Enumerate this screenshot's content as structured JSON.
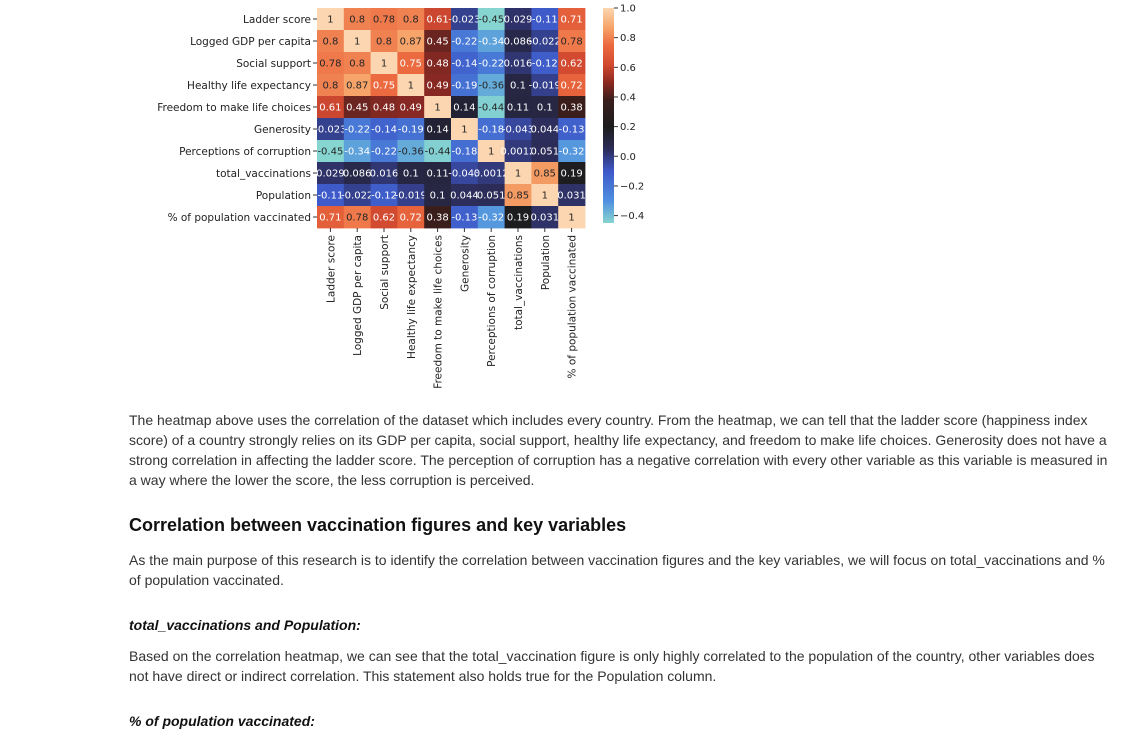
{
  "chart_data": {
    "type": "heatmap",
    "labels": [
      "Ladder score",
      "Logged GDP per capita",
      "Social support",
      "Healthy life expectancy",
      "Freedom to make life choices",
      "Generosity",
      "Perceptions of corruption",
      "total_vaccinations",
      "Population",
      "% of population vaccinated"
    ],
    "values": [
      [
        1,
        0.8,
        0.78,
        0.8,
        0.61,
        -0.023,
        -0.45,
        0.029,
        -0.11,
        0.71
      ],
      [
        0.8,
        1,
        0.8,
        0.87,
        0.45,
        -0.22,
        -0.34,
        0.086,
        -0.022,
        0.78
      ],
      [
        0.78,
        0.8,
        1,
        0.75,
        0.48,
        -0.14,
        -0.22,
        0.016,
        -0.12,
        0.62
      ],
      [
        0.8,
        0.87,
        0.75,
        1,
        0.49,
        -0.19,
        -0.36,
        0.1,
        -0.019,
        0.72
      ],
      [
        0.61,
        0.45,
        0.48,
        0.49,
        1,
        0.14,
        -0.44,
        0.11,
        0.1,
        0.38
      ],
      [
        -0.023,
        -0.22,
        -0.14,
        -0.19,
        0.14,
        1,
        -0.18,
        -0.043,
        0.044,
        -0.13
      ],
      [
        -0.45,
        -0.34,
        -0.22,
        -0.36,
        -0.44,
        -0.18,
        1,
        0.0012,
        0.051,
        -0.32
      ],
      [
        0.029,
        0.086,
        0.016,
        0.1,
        0.11,
        -0.043,
        0.0012,
        1,
        0.85,
        0.19
      ],
      [
        -0.11,
        -0.022,
        -0.12,
        -0.019,
        0.1,
        0.044,
        0.051,
        0.85,
        1,
        0.031
      ],
      [
        0.71,
        0.78,
        0.62,
        0.72,
        0.38,
        -0.13,
        -0.32,
        0.19,
        0.031,
        1
      ]
    ],
    "cell_text": [
      [
        "1",
        "0.8",
        "0.78",
        "0.8",
        "0.61",
        "-0.023",
        "-0.45",
        "0.029",
        "-0.11",
        "0.71"
      ],
      [
        "0.8",
        "1",
        "0.8",
        "0.87",
        "0.45",
        "-0.22",
        "-0.34",
        "0.086",
        "-0.022",
        "0.78"
      ],
      [
        "0.78",
        "0.8",
        "1",
        "0.75",
        "0.48",
        "-0.14",
        "-0.22",
        "0.016",
        "-0.12",
        "0.62"
      ],
      [
        "0.8",
        "0.87",
        "0.75",
        "1",
        "0.49",
        "-0.19",
        "-0.36",
        "0.1",
        "-0.019",
        "0.72"
      ],
      [
        "0.61",
        "0.45",
        "0.48",
        "0.49",
        "1",
        "0.14",
        "-0.44",
        "0.11",
        "0.1",
        "0.38"
      ],
      [
        "-0.023",
        "-0.22",
        "-0.14",
        "-0.19",
        "0.14",
        "1",
        "-0.18",
        "-0.043",
        "0.044",
        "-0.13"
      ],
      [
        "-0.45",
        "-0.34",
        "-0.22",
        "-0.36",
        "-0.44",
        "-0.18",
        "1",
        "0.0012",
        "0.051",
        "-0.32"
      ],
      [
        "0.029",
        "0.086",
        "0.016",
        "0.1",
        "0.11",
        "-0.043",
        "0.0012",
        "1",
        "0.85",
        "0.19"
      ],
      [
        "-0.11",
        "-0.022",
        "-0.12",
        "-0.019",
        "0.1",
        "0.044",
        "0.051",
        "0.85",
        "1",
        "0.031"
      ],
      [
        "0.71",
        "0.78",
        "0.62",
        "0.72",
        "0.38",
        "-0.13",
        "-0.32",
        "0.19",
        "0.031",
        "1"
      ]
    ],
    "colorbar": {
      "range": [
        -0.45,
        1.0
      ],
      "ticks": [
        1.0,
        0.8,
        0.6,
        0.4,
        0.2,
        0.0,
        -0.2,
        -0.4
      ],
      "tick_labels": [
        "1.0",
        "0.8",
        "0.6",
        "0.4",
        "0.2",
        "0.0",
        "−0.2",
        "−0.4"
      ],
      "colormap_stops": [
        {
          "v": -0.45,
          "c": "#86d5d0"
        },
        {
          "v": -0.3,
          "c": "#4f8fe0"
        },
        {
          "v": -0.1,
          "c": "#3d58c8"
        },
        {
          "v": 0.05,
          "c": "#2c2c58"
        },
        {
          "v": 0.2,
          "c": "#1c1c1c"
        },
        {
          "v": 0.38,
          "c": "#3a1e1c"
        },
        {
          "v": 0.5,
          "c": "#8e2a22"
        },
        {
          "v": 0.62,
          "c": "#d24a30"
        },
        {
          "v": 0.75,
          "c": "#ec6a40"
        },
        {
          "v": 0.87,
          "c": "#f6a46a"
        },
        {
          "v": 1.0,
          "c": "#fcd6b0"
        }
      ]
    },
    "grid": false
  },
  "article": {
    "intro_paragraph": "The heatmap above uses the correlation of the dataset which includes every country. From the heatmap, we can tell that the ladder score (happiness index score) of a country strongly relies on its GDP per capita, social support, healthy life expectancy, and freedom to make life choices. Generosity does not have a strong correlation in affecting the ladder score. The perception of corruption has a negative correlation with every other variable as this variable is measured in a way where the lower the score, the less corruption is perceived.",
    "section_heading": "Correlation between vaccination figures and key variables",
    "section_paragraph": "As the main purpose of this research is to identify the correlation between vaccination figures and the key variables, we will focus on total_vaccinations and % of population vaccinated.",
    "sub1_heading": "total_vaccinations and Population:",
    "sub1_paragraph": "Based on the correlation heatmap, we can see that the total_vaccination figure is only highly correlated to the population of the country, other variables does not have direct or indirect correlation. This statement also holds true for the Population column.",
    "sub2_heading": "% of population vaccinated:"
  }
}
